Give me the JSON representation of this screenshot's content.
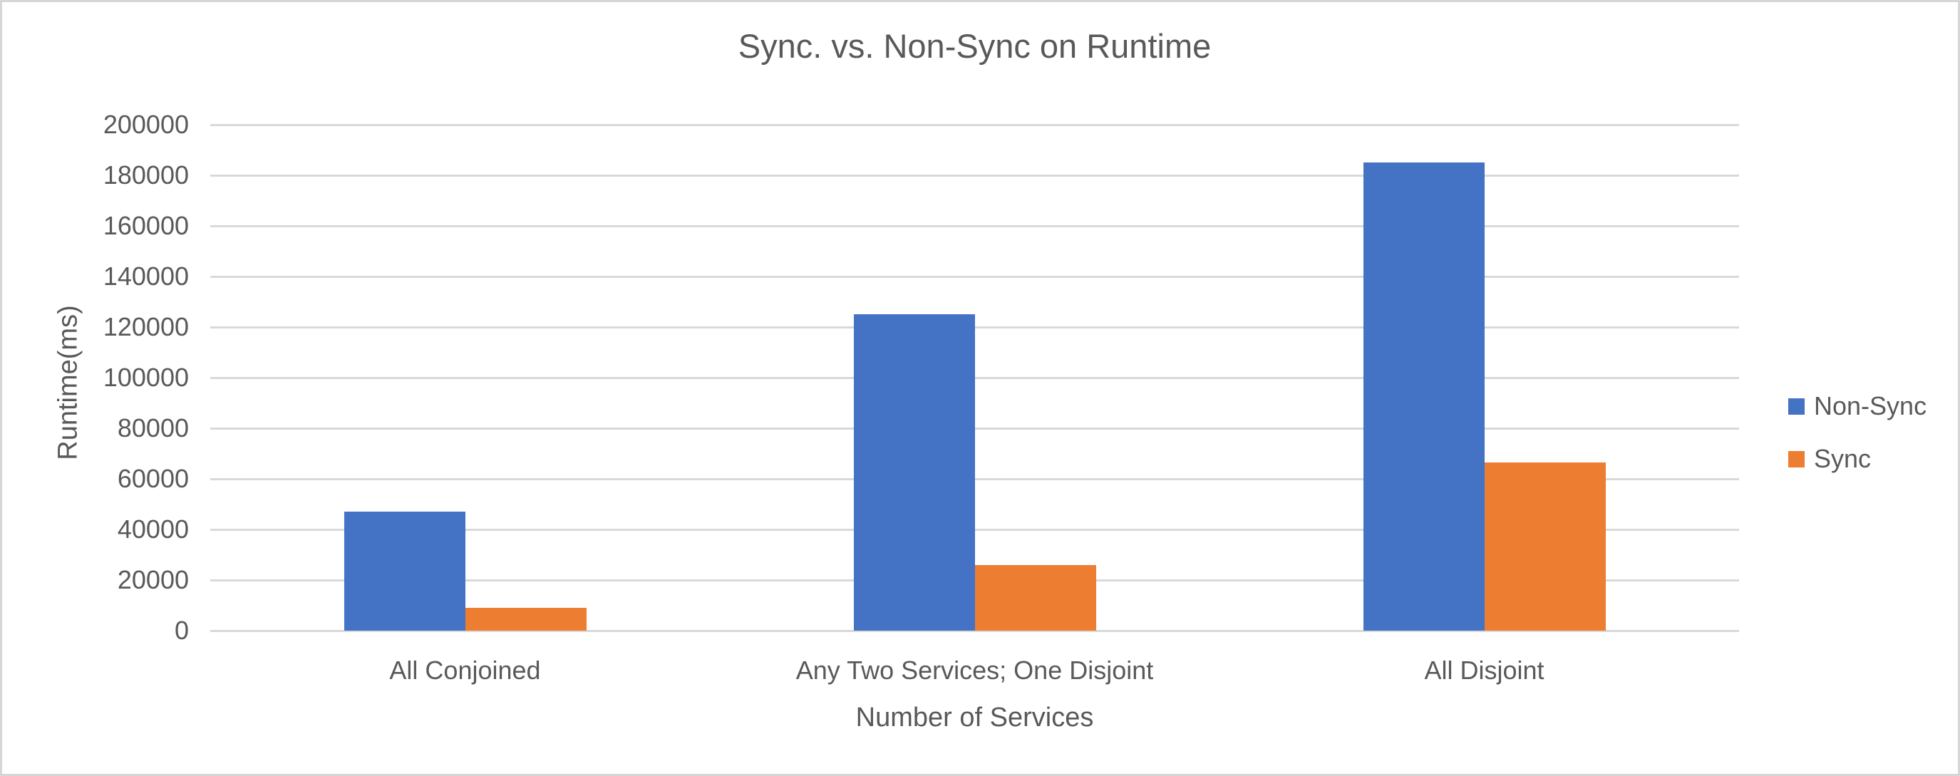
{
  "chart_data": {
    "type": "bar",
    "title": "Sync. vs. Non-Sync on Runtime",
    "xlabel": "Number of Services",
    "ylabel": "Runtime(ms)",
    "categories": [
      "All Conjoined",
      "Any Two Services; One Disjoint",
      "All Disjoint"
    ],
    "series": [
      {
        "name": "Non-Sync",
        "color": "#4472C4",
        "values": [
          47000,
          125000,
          185000
        ]
      },
      {
        "name": "Sync",
        "color": "#ED7D31",
        "values": [
          9000,
          26000,
          66500
        ]
      }
    ],
    "ylim": [
      0,
      200000
    ],
    "yticks": [
      0,
      20000,
      40000,
      60000,
      80000,
      100000,
      120000,
      140000,
      160000,
      180000,
      200000
    ],
    "grid": true,
    "legend_position": "right",
    "axis_text_color": "#595959",
    "gridline_color": "#D9D9D9",
    "background_color": "#FFFFFF"
  }
}
